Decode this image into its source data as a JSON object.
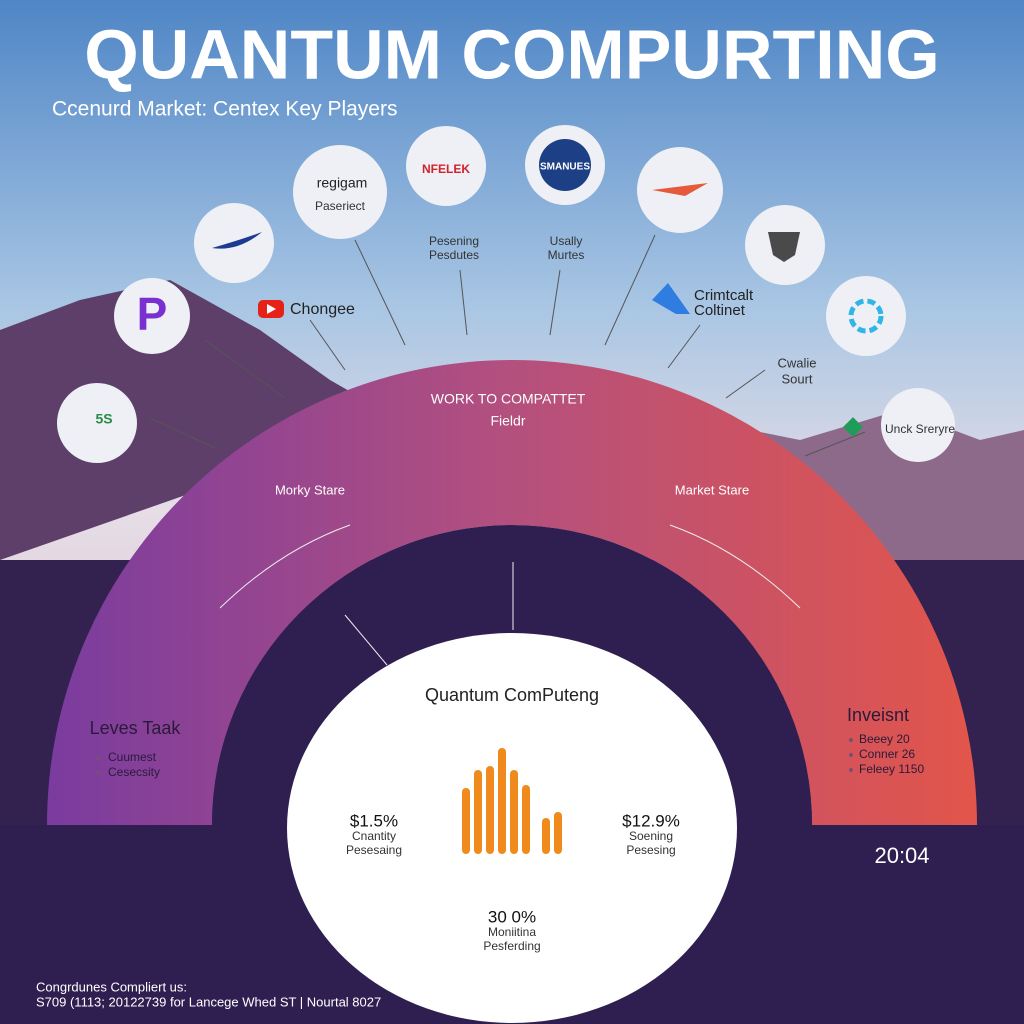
{
  "header": {
    "title": "QUANTUM COMPURTING",
    "subtitle": "Ccenurd Market: Centex Key Players"
  },
  "logos": [
    "P",
    "5S",
    "regigam",
    "NFELEK",
    "SMANUES"
  ],
  "labels": [
    "Paseriect",
    "Pesening",
    "Pesdutes",
    "Usally",
    "Murtes",
    "Chongee",
    "Crimtcalt",
    "Coltinet",
    "Cwalie",
    "Sourt",
    "Unck Sreryre"
  ],
  "arc": {
    "heading": "WORK TO COMPATTET",
    "subheading": "Fieldr",
    "left_label": "Morky Stare",
    "right_label": "Market Stare",
    "left_box": {
      "title": "Leves Taak",
      "items": [
        "Cuumest",
        "Cesecsity"
      ]
    },
    "right_box": {
      "title": "Inveisnt",
      "items": [
        "Beeey 20",
        "Conner 26",
        "Feleey 1150"
      ]
    }
  },
  "center": {
    "title": "Quantum ComPuteng",
    "stats": [
      {
        "value": "$1.5%",
        "lines": [
          "Cnantity",
          "Pesesaing"
        ]
      },
      {
        "value": "$12.9%",
        "lines": [
          "Soening",
          "Pesesing"
        ]
      },
      {
        "value": "30 0%",
        "lines": [
          "Moniitina",
          "Pesferding"
        ]
      }
    ]
  },
  "time": "20:04",
  "footer": [
    "Congrdunes Compliert us:",
    "S709 (1113; 20122739 for Lancege Whed ST | Nourtal 8027"
  ]
}
